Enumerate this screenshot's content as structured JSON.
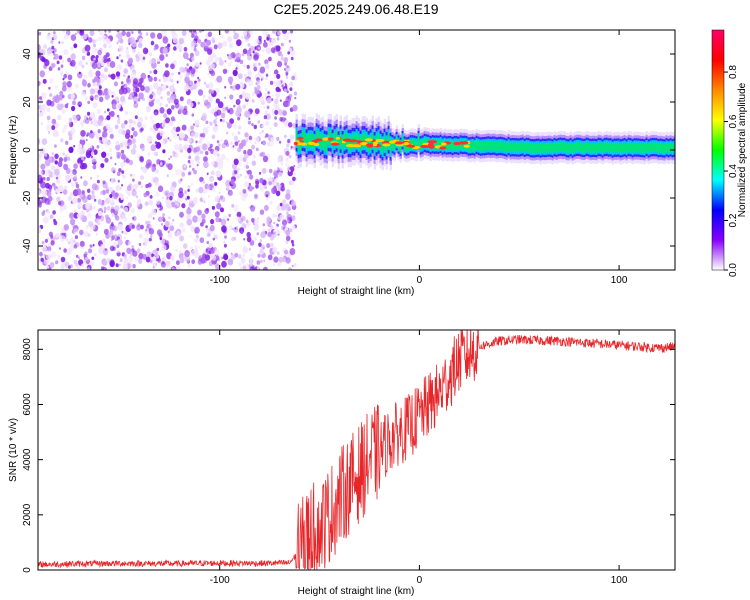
{
  "title": "C2E5.2025.249.06.48.E19",
  "chart_data": [
    {
      "type": "heatmap",
      "xlabel": "Height of straight line (km)",
      "ylabel": "Frequency (Hz)",
      "xlim": [
        -191,
        128
      ],
      "ylim": [
        -50,
        50
      ],
      "xticks": [
        -100,
        0,
        100
      ],
      "yticks": [
        -40,
        -20,
        0,
        20,
        40
      ],
      "noise_region_x": [
        -191,
        -62
      ],
      "signal_start_x": -62,
      "signal_center_freq_start": 4,
      "signal_center_freq_end": 1,
      "colorbar": {
        "label": "Normalized spectral amplitude",
        "range": [
          0,
          0.97
        ],
        "ticks": [
          0.0,
          0.2,
          0.4,
          0.6,
          0.8
        ],
        "tick_labels": [
          "0.0",
          "0.2",
          "0.4",
          "0.6",
          "0.8"
        ],
        "colors": [
          "#ffffff",
          "#8800ff",
          "#0000ff",
          "#00ffff",
          "#00ff00",
          "#ffff00",
          "#ff8800",
          "#ff0000",
          "#ff0066"
        ]
      }
    },
    {
      "type": "line",
      "xlabel": "Height of straight line (km)",
      "ylabel": "SNR (10 * v/v)",
      "xlim": [
        -191,
        128
      ],
      "ylim": [
        0,
        8700
      ],
      "xticks": [
        -100,
        0,
        100
      ],
      "yticks": [
        0,
        2000,
        4000,
        6000,
        8000
      ],
      "color": "#e8262a",
      "series": [
        {
          "name": "SNR",
          "x": [
            -191,
            -175,
            -150,
            -125,
            -100,
            -80,
            -65,
            -60,
            -55,
            -50,
            -45,
            -40,
            -35,
            -30,
            -25,
            -20,
            -15,
            -10,
            -5,
            0,
            5,
            10,
            15,
            20,
            30,
            40,
            50,
            60,
            70,
            80,
            90,
            100,
            110,
            120,
            128
          ],
          "y": [
            200,
            220,
            240,
            230,
            250,
            240,
            260,
            700,
            1300,
            1600,
            2000,
            2600,
            3100,
            3500,
            4000,
            4300,
            4700,
            5000,
            5200,
            5600,
            6000,
            6400,
            7000,
            7600,
            8100,
            8300,
            8350,
            8320,
            8300,
            8250,
            8200,
            8150,
            8100,
            8050,
            8100
          ]
        }
      ]
    }
  ]
}
